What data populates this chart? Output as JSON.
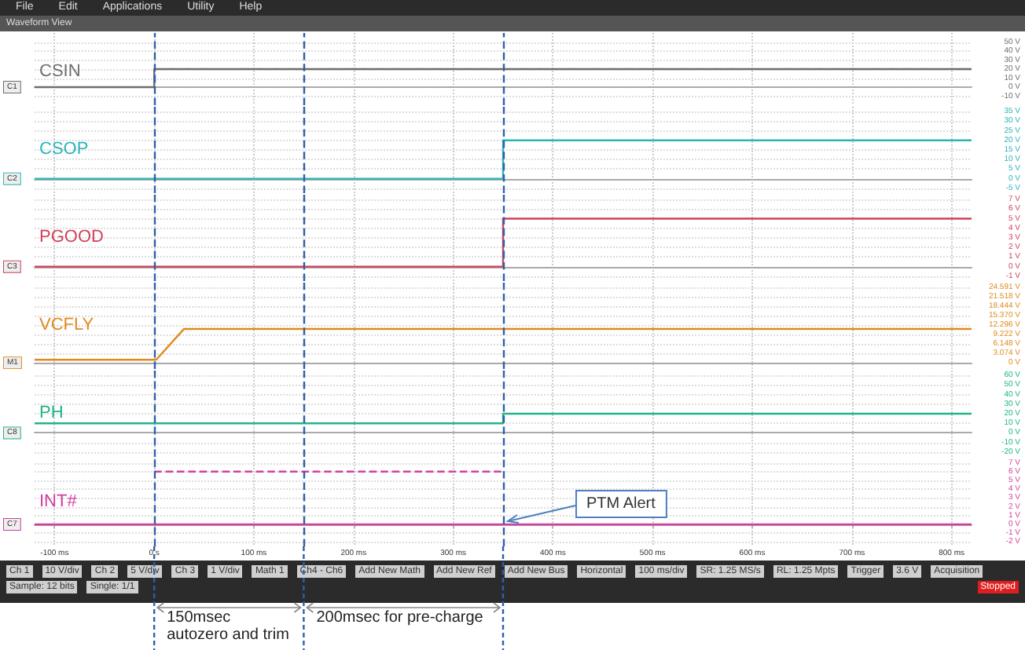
{
  "chart_data": [
    {
      "type": "line",
      "title": "CSIN",
      "ylabel": "C1",
      "xlim": [
        -120,
        820
      ],
      "ylim": [
        -20,
        60
      ],
      "grid": true,
      "tick_labels": "y",
      "marker": "none",
      "yticks": [
        {
          "value": -10,
          "label": "-10 V"
        },
        {
          "value": 0,
          "label": "0 V"
        },
        {
          "value": 10,
          "label": "10 V"
        },
        {
          "value": 20,
          "label": "20 V"
        },
        {
          "value": 30,
          "label": "30 V"
        },
        {
          "value": 40,
          "label": "40 V"
        },
        {
          "value": 50,
          "label": "50 V"
        }
      ],
      "series": [
        {
          "color": "#6e6e6e",
          "x": [
            -120,
            0,
            0,
            820
          ],
          "values": [
            0,
            0,
            20,
            20
          ]
        }
      ],
      "ref_lines": [
        {
          "axis": "x",
          "value": 0,
          "color": "#2f5fa8",
          "line_style": "dashed"
        },
        {
          "axis": "x",
          "value": 150,
          "color": "#2f5fa8",
          "line_style": "dashed"
        },
        {
          "axis": "x",
          "value": 350,
          "color": "#2f5fa8",
          "line_style": "dashed"
        }
      ],
      "annotations": [
        "File",
        "Edit",
        "Applications",
        "Utility",
        "Help",
        "Waveform View"
      ]
    },
    {
      "type": "line",
      "title": "CSOP",
      "ylabel": "C2",
      "xlim": [
        -120,
        820
      ],
      "ylim": [
        -7.5,
        37.5
      ],
      "grid": true,
      "tick_labels": "y",
      "marker": "none",
      "yticks": [
        {
          "value": -5,
          "label": "-5 V"
        },
        {
          "value": 0,
          "label": "0 V"
        },
        {
          "value": 5,
          "label": "5 V"
        },
        {
          "value": 10,
          "label": "10 V"
        },
        {
          "value": 15,
          "label": "15 V"
        },
        {
          "value": 20,
          "label": "20 V"
        },
        {
          "value": 25,
          "label": "25 V"
        },
        {
          "value": 30,
          "label": "30 V"
        },
        {
          "value": 35,
          "label": "35 V"
        }
      ],
      "series": [
        {
          "color": "#2ab5b8",
          "x": [
            -120,
            350,
            350,
            820
          ],
          "values": [
            0,
            0,
            20,
            20
          ]
        }
      ],
      "ref_lines": [
        {
          "axis": "x",
          "value": 0,
          "color": "#2f5fa8",
          "line_style": "dashed"
        },
        {
          "axis": "x",
          "value": 150,
          "color": "#2f5fa8",
          "line_style": "dashed"
        },
        {
          "axis": "x",
          "value": 350,
          "color": "#2f5fa8",
          "line_style": "dashed"
        }
      ]
    },
    {
      "type": "line",
      "title": "PGOOD",
      "ylabel": "C3",
      "xlim": [
        -120,
        820
      ],
      "ylim": [
        -1.5,
        7.5
      ],
      "grid": true,
      "tick_labels": "y",
      "marker": "none",
      "yticks": [
        {
          "value": -1,
          "label": "-1 V"
        },
        {
          "value": 0,
          "label": "0 V"
        },
        {
          "value": 1,
          "label": "1 V"
        },
        {
          "value": 2,
          "label": "2 V"
        },
        {
          "value": 3,
          "label": "3 V"
        },
        {
          "value": 4,
          "label": "4 V"
        },
        {
          "value": 5,
          "label": "5 V"
        },
        {
          "value": 6,
          "label": "6 V"
        },
        {
          "value": 7,
          "label": "7 V"
        }
      ],
      "series": [
        {
          "color": "#d0415a",
          "x": [
            -120,
            350,
            350,
            820
          ],
          "values": [
            0,
            0,
            5,
            5
          ]
        }
      ],
      "ref_lines": [
        {
          "axis": "x",
          "value": 0,
          "color": "#2f5fa8",
          "line_style": "dashed"
        },
        {
          "axis": "x",
          "value": 150,
          "color": "#2f5fa8",
          "line_style": "dashed"
        },
        {
          "axis": "x",
          "value": 350,
          "color": "#2f5fa8",
          "line_style": "dashed"
        }
      ]
    },
    {
      "type": "line",
      "title": "VCFLY",
      "ylabel": "M1",
      "xlim": [
        -120,
        820
      ],
      "ylim": [
        -2,
        26
      ],
      "grid": true,
      "tick_labels": "y",
      "marker": "none",
      "yticks": [
        {
          "value": 0,
          "label": "0 V"
        },
        {
          "value": 3.074,
          "label": "3.074 V"
        },
        {
          "value": 6.148,
          "label": "6.148 V"
        },
        {
          "value": 9.222,
          "label": "9.222 V"
        },
        {
          "value": 12.296,
          "label": "12.296 V"
        },
        {
          "value": 15.37,
          "label": "15.370 V"
        },
        {
          "value": 18.444,
          "label": "18.444 V"
        },
        {
          "value": 21.518,
          "label": "21.518 V"
        },
        {
          "value": 24.591,
          "label": "24.591 V"
        }
      ],
      "series": [
        {
          "color": "#e08a1e",
          "x": [
            -120,
            2,
            30,
            820
          ],
          "values": [
            1,
            1,
            11,
            11
          ]
        }
      ],
      "ref_lines": [
        {
          "axis": "x",
          "value": 0,
          "color": "#2f5fa8",
          "line_style": "dashed"
        },
        {
          "axis": "x",
          "value": 150,
          "color": "#2f5fa8",
          "line_style": "dashed"
        },
        {
          "axis": "x",
          "value": 350,
          "color": "#2f5fa8",
          "line_style": "dashed"
        }
      ]
    },
    {
      "type": "line",
      "title": "PH",
      "ylabel": "C8",
      "xlim": [
        -120,
        820
      ],
      "ylim": [
        -25,
        65
      ],
      "grid": true,
      "tick_labels": "y",
      "marker": "none",
      "yticks": [
        {
          "value": -20,
          "label": "-20 V"
        },
        {
          "value": -10,
          "label": "-10 V"
        },
        {
          "value": 0,
          "label": "0 V"
        },
        {
          "value": 10,
          "label": "10 V"
        },
        {
          "value": 20,
          "label": "20 V"
        },
        {
          "value": 30,
          "label": "30 V"
        },
        {
          "value": 40,
          "label": "40 V"
        },
        {
          "value": 50,
          "label": "50 V"
        },
        {
          "value": 60,
          "label": "60 V"
        }
      ],
      "series": [
        {
          "color": "#21b38a",
          "x": [
            -120,
            350,
            350,
            820
          ],
          "values": [
            10,
            10,
            20,
            20
          ]
        }
      ],
      "ref_lines": [
        {
          "axis": "x",
          "value": 0,
          "color": "#2f5fa8",
          "line_style": "dashed"
        },
        {
          "axis": "x",
          "value": 150,
          "color": "#2f5fa8",
          "line_style": "dashed"
        },
        {
          "axis": "x",
          "value": 350,
          "color": "#2f5fa8",
          "line_style": "dashed"
        }
      ]
    },
    {
      "type": "line",
      "title": "INT#",
      "ylabel": "C7",
      "xlim": [
        -120,
        820
      ],
      "ylim": [
        -2.5,
        7.5
      ],
      "grid": true,
      "marker": "none",
      "xticks": [
        {
          "value": -100,
          "label": "-100 ms"
        },
        {
          "value": 0,
          "label": "0 s"
        },
        {
          "value": 100,
          "label": "100 ms"
        },
        {
          "value": 200,
          "label": "200 ms"
        },
        {
          "value": 300,
          "label": "300 ms"
        },
        {
          "value": 400,
          "label": "400 ms"
        },
        {
          "value": 500,
          "label": "500 ms"
        },
        {
          "value": 600,
          "label": "600 ms"
        },
        {
          "value": 700,
          "label": "700 ms"
        },
        {
          "value": 800,
          "label": "800 ms"
        }
      ],
      "yticks": [
        {
          "value": -2,
          "label": "-2 V"
        },
        {
          "value": -1,
          "label": "-1 V"
        },
        {
          "value": 0,
          "label": "0 V"
        },
        {
          "value": 1,
          "label": "1 V"
        },
        {
          "value": 2,
          "label": "2 V"
        },
        {
          "value": 3,
          "label": "3 V"
        },
        {
          "value": 4,
          "label": "4 V"
        },
        {
          "value": 5,
          "label": "5 V"
        },
        {
          "value": 6,
          "label": "6 V"
        },
        {
          "value": 7,
          "label": "7 V"
        }
      ],
      "series": [
        {
          "color": "#d13fa0",
          "x": [
            -120,
            820
          ],
          "values": [
            0,
            0
          ]
        },
        {
          "color": "#d13fa0",
          "line_style": "dashed",
          "x": [
            0,
            350
          ],
          "values": [
            6,
            6
          ]
        }
      ],
      "ref_lines": [
        {
          "axis": "x",
          "value": 0,
          "color": "#2f5fa8",
          "line_style": "dashed"
        },
        {
          "axis": "x",
          "value": 150,
          "color": "#2f5fa8",
          "line_style": "dashed"
        },
        {
          "axis": "x",
          "value": 350,
          "color": "#2f5fa8",
          "line_style": "dashed"
        }
      ],
      "annotations": [
        {
          "text": "PTM Alert",
          "x": 350,
          "y": 0
        },
        "150msec\nautozero and trim",
        "200msec for pre-charge",
        "Ch 1",
        "10 V/div",
        "Ch 2",
        "5 V/div",
        "Ch 3",
        "1 V/div",
        "Math 1",
        "Ch4 - Ch6",
        "Add New Math",
        "Add New Ref",
        "Add New Bus",
        "Horizontal",
        "100 ms/div",
        "SR: 1.25 MS/s",
        "RL: 1.25 Mpts",
        "Trigger",
        "3.6 V",
        "Acquisition",
        "Sample: 12 bits",
        "Single: 1/1",
        "Stopped"
      ]
    }
  ]
}
